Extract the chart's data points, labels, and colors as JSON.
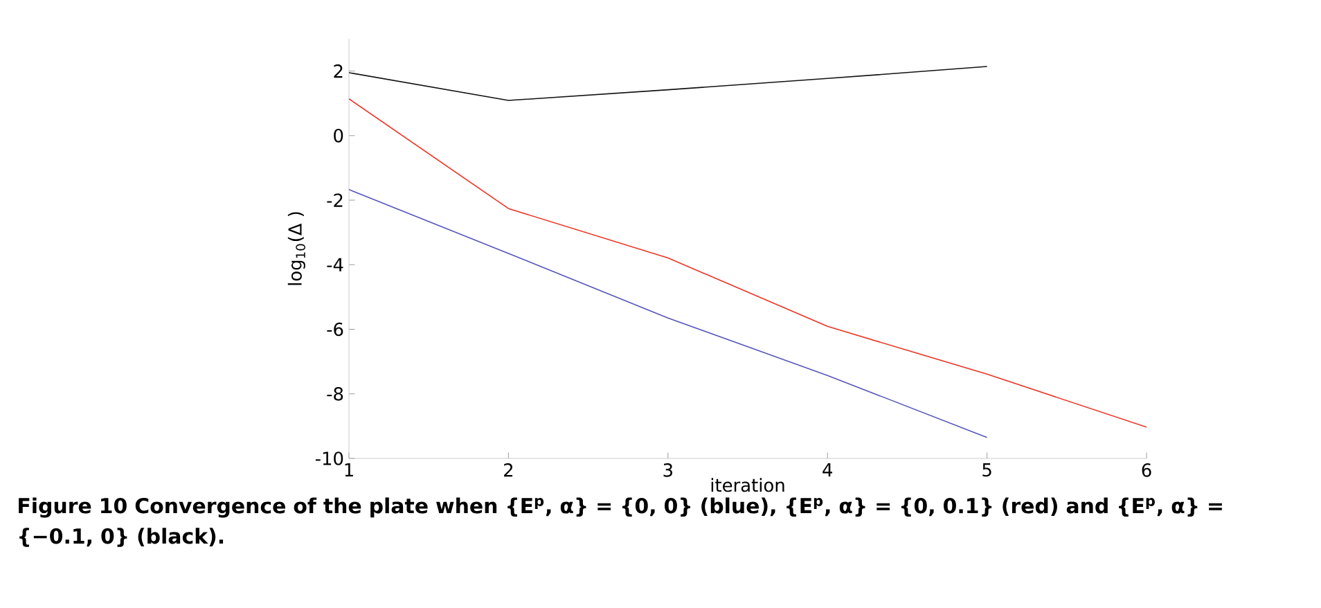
{
  "chart_data": {
    "type": "line",
    "xlabel": "iteration",
    "ylabel": "log$_{10}$(Δ )",
    "x": [
      1,
      2,
      3,
      4,
      5,
      6
    ],
    "xlim": [
      1,
      6
    ],
    "ylim": [
      -10,
      3
    ],
    "xticks": [
      1,
      2,
      3,
      4,
      5,
      6
    ],
    "yticks": [
      -10,
      -8,
      -6,
      -4,
      -2,
      0,
      2
    ],
    "grid": false,
    "marker": "none",
    "line_style": "solid",
    "series": [
      {
        "color": "#5555bb",
        "values": [
          -1.67,
          -3.65,
          -5.65,
          -7.43,
          -9.35,
          null
        ]
      },
      {
        "color": "#ee3322",
        "values": [
          1.14,
          -2.26,
          -3.79,
          -5.91,
          -7.39,
          -9.03
        ]
      },
      {
        "color": "#111111",
        "values": [
          1.95,
          1.09,
          1.42,
          1.77,
          2.14,
          null
        ]
      }
    ],
    "annotations": [
      "Figure 10 Convergence of the plate when {E$^{p}$, α} = {0, 0} (blue), {E$^{p}$, α} = {0, 0.1} (red) and {E$^{p}$, α} = {−0.1, 0} (black)."
    ]
  }
}
